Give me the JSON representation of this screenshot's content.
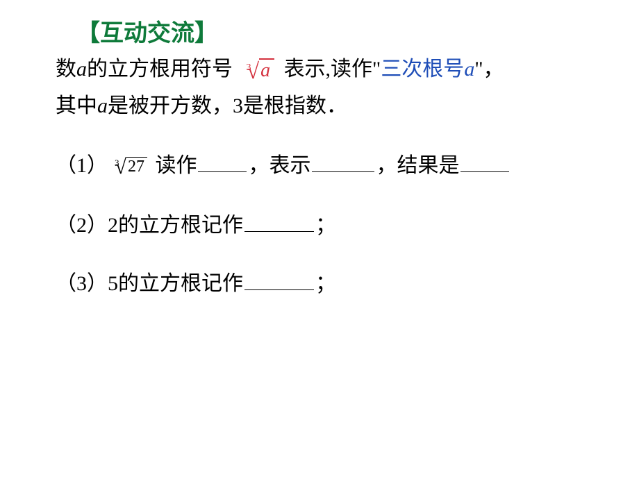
{
  "heading": "【互动交流】",
  "intro": {
    "part1": "数",
    "a": "a",
    "part2": "的立方根用符号 ",
    "radical_index": "3",
    "radical_sym": "√",
    "radicand": "a",
    "part3": " 表示,读作\"",
    "blue1": "三次根号",
    "blue_a": "a",
    "part4": "\"，",
    "line2_part1": "其中",
    "line2_a": "a",
    "line2_part2": "是被开方数，3是根指数．"
  },
  "q1": {
    "label": "（1）",
    "radical_index": "3",
    "radical_sym": "√",
    "radicand": "27",
    "part1": " 读作",
    "part2": "，表示",
    "part3": "，结果是"
  },
  "q2": {
    "label": "（2）2的立方根记作",
    "semicolon": "；"
  },
  "q3": {
    "label": "（3）5的立方根记作",
    "semicolon": "；"
  },
  "colors": {
    "heading": "#0e7a3a",
    "text": "#000000",
    "radical": "#d4313e",
    "blue": "#1e4db7",
    "background": "#ffffff"
  },
  "fonts": {
    "heading_size": 34,
    "body_size": 30,
    "radical_index_size": 14
  }
}
